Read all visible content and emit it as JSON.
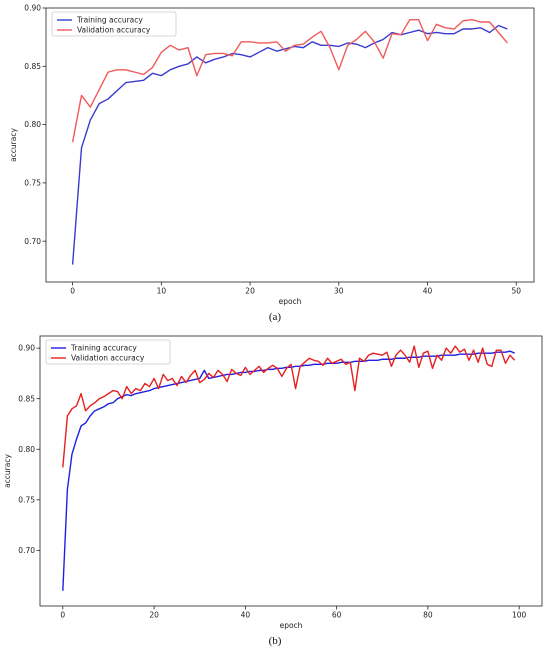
{
  "chart_data": [
    {
      "type": "line",
      "panel_label": "(a)",
      "xlabel": "epoch",
      "ylabel": "accuracy",
      "xlim": [
        -3,
        52
      ],
      "ylim": [
        0.665,
        0.9
      ],
      "xticks": [
        0,
        10,
        20,
        30,
        40,
        50
      ],
      "yticks": [
        0.7,
        0.75,
        0.8,
        0.85,
        0.9
      ],
      "ytick_labels": [
        "0.70",
        "0.75",
        "0.80",
        "0.85",
        "0.90"
      ],
      "legend_position": "top-left",
      "grid": false,
      "series": [
        {
          "name": "Training accuracy",
          "color": "#3a3ad0",
          "x": [
            0,
            1,
            2,
            3,
            4,
            5,
            6,
            7,
            8,
            9,
            10,
            11,
            12,
            13,
            14,
            15,
            16,
            17,
            18,
            19,
            20,
            21,
            22,
            23,
            24,
            25,
            26,
            27,
            28,
            29,
            30,
            31,
            32,
            33,
            34,
            35,
            36,
            37,
            38,
            39,
            40,
            41,
            42,
            43,
            44,
            45,
            46,
            47,
            48,
            49
          ],
          "values": [
            0.68,
            0.78,
            0.804,
            0.818,
            0.822,
            0.829,
            0.836,
            0.837,
            0.838,
            0.844,
            0.842,
            0.847,
            0.85,
            0.852,
            0.858,
            0.853,
            0.856,
            0.858,
            0.861,
            0.86,
            0.858,
            0.862,
            0.866,
            0.863,
            0.865,
            0.867,
            0.866,
            0.871,
            0.868,
            0.868,
            0.867,
            0.87,
            0.869,
            0.866,
            0.87,
            0.873,
            0.879,
            0.877,
            0.879,
            0.881,
            0.878,
            0.879,
            0.878,
            0.878,
            0.882,
            0.882,
            0.883,
            0.879,
            0.885,
            0.882
          ]
        },
        {
          "name": "Validation accuracy",
          "color": "#f05a5a",
          "x": [
            0,
            1,
            2,
            3,
            4,
            5,
            6,
            7,
            8,
            9,
            10,
            11,
            12,
            13,
            14,
            15,
            16,
            17,
            18,
            19,
            20,
            21,
            22,
            23,
            24,
            25,
            26,
            27,
            28,
            29,
            30,
            31,
            32,
            33,
            34,
            35,
            36,
            37,
            38,
            39,
            40,
            41,
            42,
            43,
            44,
            45,
            46,
            47,
            48,
            49
          ],
          "values": [
            0.785,
            0.825,
            0.815,
            0.83,
            0.845,
            0.847,
            0.847,
            0.845,
            0.843,
            0.849,
            0.862,
            0.868,
            0.864,
            0.866,
            0.842,
            0.86,
            0.861,
            0.861,
            0.859,
            0.871,
            0.871,
            0.87,
            0.87,
            0.871,
            0.863,
            0.868,
            0.869,
            0.875,
            0.88,
            0.866,
            0.847,
            0.868,
            0.873,
            0.88,
            0.871,
            0.857,
            0.878,
            0.877,
            0.89,
            0.89,
            0.872,
            0.886,
            0.883,
            0.882,
            0.889,
            0.89,
            0.888,
            0.888,
            0.879,
            0.87
          ]
        }
      ]
    },
    {
      "type": "line",
      "panel_label": "(b)",
      "xlabel": "epoch",
      "ylabel": "accuracy",
      "xlim": [
        -5,
        105
      ],
      "ylim": [
        0.645,
        0.912
      ],
      "xticks": [
        0,
        20,
        40,
        60,
        80,
        100
      ],
      "yticks": [
        0.7,
        0.75,
        0.8,
        0.85,
        0.9
      ],
      "ytick_labels": [
        "0.70",
        "0.75",
        "0.80",
        "0.85",
        "0.90"
      ],
      "legend_position": "top-left",
      "grid": false,
      "series": [
        {
          "name": "Training accuracy",
          "color": "#1f1fe6",
          "x": [
            0,
            1,
            2,
            3,
            4,
            5,
            6,
            7,
            8,
            9,
            10,
            11,
            12,
            13,
            14,
            15,
            16,
            17,
            18,
            19,
            20,
            21,
            22,
            23,
            24,
            25,
            26,
            27,
            28,
            29,
            30,
            31,
            32,
            33,
            34,
            35,
            36,
            37,
            38,
            39,
            40,
            41,
            42,
            43,
            44,
            45,
            46,
            47,
            48,
            49,
            50,
            51,
            52,
            53,
            54,
            55,
            56,
            57,
            58,
            59,
            60,
            61,
            62,
            63,
            64,
            65,
            66,
            67,
            68,
            69,
            70,
            71,
            72,
            73,
            74,
            75,
            76,
            77,
            78,
            79,
            80,
            81,
            82,
            83,
            84,
            85,
            86,
            87,
            88,
            89,
            90,
            91,
            92,
            93,
            94,
            95,
            96,
            97,
            98,
            99
          ],
          "values": [
            0.66,
            0.76,
            0.795,
            0.81,
            0.823,
            0.826,
            0.833,
            0.838,
            0.84,
            0.842,
            0.845,
            0.846,
            0.85,
            0.852,
            0.854,
            0.853,
            0.855,
            0.856,
            0.857,
            0.858,
            0.86,
            0.861,
            0.862,
            0.863,
            0.864,
            0.865,
            0.866,
            0.867,
            0.868,
            0.869,
            0.87,
            0.878,
            0.87,
            0.871,
            0.872,
            0.873,
            0.874,
            0.874,
            0.875,
            0.876,
            0.876,
            0.877,
            0.877,
            0.878,
            0.878,
            0.879,
            0.879,
            0.88,
            0.88,
            0.881,
            0.881,
            0.882,
            0.882,
            0.883,
            0.883,
            0.884,
            0.884,
            0.884,
            0.885,
            0.885,
            0.885,
            0.886,
            0.886,
            0.886,
            0.887,
            0.887,
            0.887,
            0.888,
            0.888,
            0.888,
            0.889,
            0.889,
            0.889,
            0.89,
            0.89,
            0.89,
            0.891,
            0.891,
            0.891,
            0.892,
            0.892,
            0.892,
            0.892,
            0.893,
            0.893,
            0.893,
            0.893,
            0.894,
            0.894,
            0.894,
            0.894,
            0.895,
            0.895,
            0.895,
            0.895,
            0.896,
            0.896,
            0.896,
            0.897,
            0.895
          ]
        },
        {
          "name": "Validation accuracy",
          "color": "#e61f1f",
          "x": [
            0,
            1,
            2,
            3,
            4,
            5,
            6,
            7,
            8,
            9,
            10,
            11,
            12,
            13,
            14,
            15,
            16,
            17,
            18,
            19,
            20,
            21,
            22,
            23,
            24,
            25,
            26,
            27,
            28,
            29,
            30,
            31,
            32,
            33,
            34,
            35,
            36,
            37,
            38,
            39,
            40,
            41,
            42,
            43,
            44,
            45,
            46,
            47,
            48,
            49,
            50,
            51,
            52,
            53,
            54,
            55,
            56,
            57,
            58,
            59,
            60,
            61,
            62,
            63,
            64,
            65,
            66,
            67,
            68,
            69,
            70,
            71,
            72,
            73,
            74,
            75,
            76,
            77,
            78,
            79,
            80,
            81,
            82,
            83,
            84,
            85,
            86,
            87,
            88,
            89,
            90,
            91,
            92,
            93,
            94,
            95,
            96,
            97,
            98,
            99
          ],
          "values": [
            0.782,
            0.833,
            0.84,
            0.843,
            0.855,
            0.838,
            0.843,
            0.846,
            0.85,
            0.852,
            0.855,
            0.858,
            0.857,
            0.85,
            0.862,
            0.855,
            0.86,
            0.858,
            0.865,
            0.862,
            0.87,
            0.86,
            0.874,
            0.868,
            0.87,
            0.863,
            0.872,
            0.866,
            0.873,
            0.878,
            0.866,
            0.869,
            0.875,
            0.871,
            0.878,
            0.874,
            0.867,
            0.879,
            0.875,
            0.873,
            0.881,
            0.874,
            0.878,
            0.882,
            0.876,
            0.88,
            0.883,
            0.88,
            0.872,
            0.88,
            0.884,
            0.86,
            0.882,
            0.886,
            0.89,
            0.888,
            0.887,
            0.883,
            0.89,
            0.885,
            0.887,
            0.889,
            0.884,
            0.886,
            0.858,
            0.89,
            0.887,
            0.893,
            0.895,
            0.894,
            0.893,
            0.896,
            0.882,
            0.893,
            0.898,
            0.893,
            0.886,
            0.902,
            0.881,
            0.895,
            0.897,
            0.88,
            0.893,
            0.888,
            0.9,
            0.895,
            0.902,
            0.896,
            0.899,
            0.888,
            0.898,
            0.886,
            0.9,
            0.884,
            0.882,
            0.898,
            0.898,
            0.885,
            0.893,
            0.888
          ]
        }
      ]
    }
  ]
}
